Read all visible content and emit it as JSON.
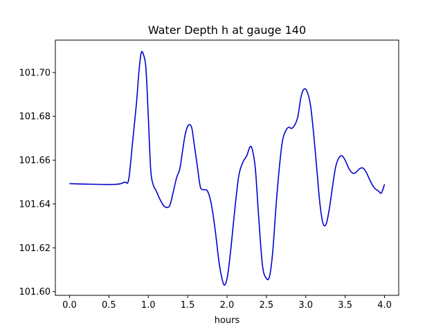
{
  "chart_data": {
    "type": "line",
    "title": "Water Depth h at gauge 140",
    "xlabel": "hours",
    "ylabel": "",
    "xlim": [
      -0.18,
      4.18
    ],
    "ylim": [
      101.5983,
      101.7148
    ],
    "xticks": [
      0.0,
      0.5,
      1.0,
      1.5,
      2.0,
      2.5,
      3.0,
      3.5,
      4.0
    ],
    "xtick_labels": [
      "0.0",
      "0.5",
      "1.0",
      "1.5",
      "2.0",
      "2.5",
      "3.0",
      "3.5",
      "4.0"
    ],
    "yticks": [
      101.6,
      101.62,
      101.64,
      101.66,
      101.68,
      101.7
    ],
    "ytick_labels": [
      "101.60",
      "101.62",
      "101.64",
      "101.66",
      "101.68",
      "101.70"
    ],
    "grid": false,
    "line_color": "#0000cc",
    "series": [
      {
        "x": [
          0.0,
          0.3,
          0.6,
          0.7,
          0.75,
          0.8,
          0.85,
          0.88,
          0.91,
          0.94,
          0.97,
          1.0,
          1.03,
          1.06,
          1.1,
          1.15,
          1.2,
          1.25,
          1.28,
          1.32,
          1.36,
          1.4,
          1.43,
          1.47,
          1.51,
          1.55,
          1.58,
          1.62,
          1.66,
          1.7,
          1.75,
          1.8,
          1.85,
          1.9,
          1.95,
          1.98,
          2.01,
          2.05,
          2.1,
          2.15,
          2.2,
          2.25,
          2.29,
          2.32,
          2.36,
          2.4,
          2.45,
          2.5,
          2.54,
          2.58,
          2.62,
          2.66,
          2.7,
          2.74,
          2.78,
          2.82,
          2.86,
          2.9,
          2.94,
          2.98,
          3.02,
          3.06,
          3.1,
          3.14,
          3.18,
          3.22,
          3.26,
          3.3,
          3.34,
          3.38,
          3.42,
          3.46,
          3.5,
          3.55,
          3.6,
          3.64,
          3.68,
          3.72,
          3.76,
          3.8,
          3.84,
          3.88,
          3.92,
          3.96,
          4.0
        ],
        "y": [
          101.6493,
          101.649,
          101.649,
          101.65,
          101.651,
          101.668,
          101.686,
          101.7,
          101.709,
          101.708,
          101.702,
          101.68,
          101.656,
          101.649,
          101.646,
          101.642,
          101.639,
          101.6385,
          101.64,
          101.646,
          101.652,
          101.656,
          101.663,
          101.672,
          101.676,
          101.675,
          101.668,
          101.658,
          101.648,
          101.6465,
          101.646,
          101.64,
          101.628,
          101.613,
          101.604,
          101.6035,
          101.608,
          101.62,
          101.638,
          101.653,
          101.659,
          101.662,
          101.666,
          101.665,
          101.656,
          101.635,
          101.612,
          101.606,
          101.607,
          101.618,
          101.638,
          101.655,
          101.668,
          101.673,
          101.675,
          101.6745,
          101.676,
          101.68,
          101.689,
          101.6925,
          101.691,
          101.685,
          101.672,
          101.656,
          101.64,
          101.631,
          101.631,
          101.638,
          101.648,
          101.657,
          101.661,
          101.662,
          101.66,
          101.656,
          101.654,
          101.6545,
          101.656,
          101.6565,
          101.655,
          101.652,
          101.649,
          101.647,
          101.646,
          101.645,
          101.649
        ]
      }
    ]
  }
}
